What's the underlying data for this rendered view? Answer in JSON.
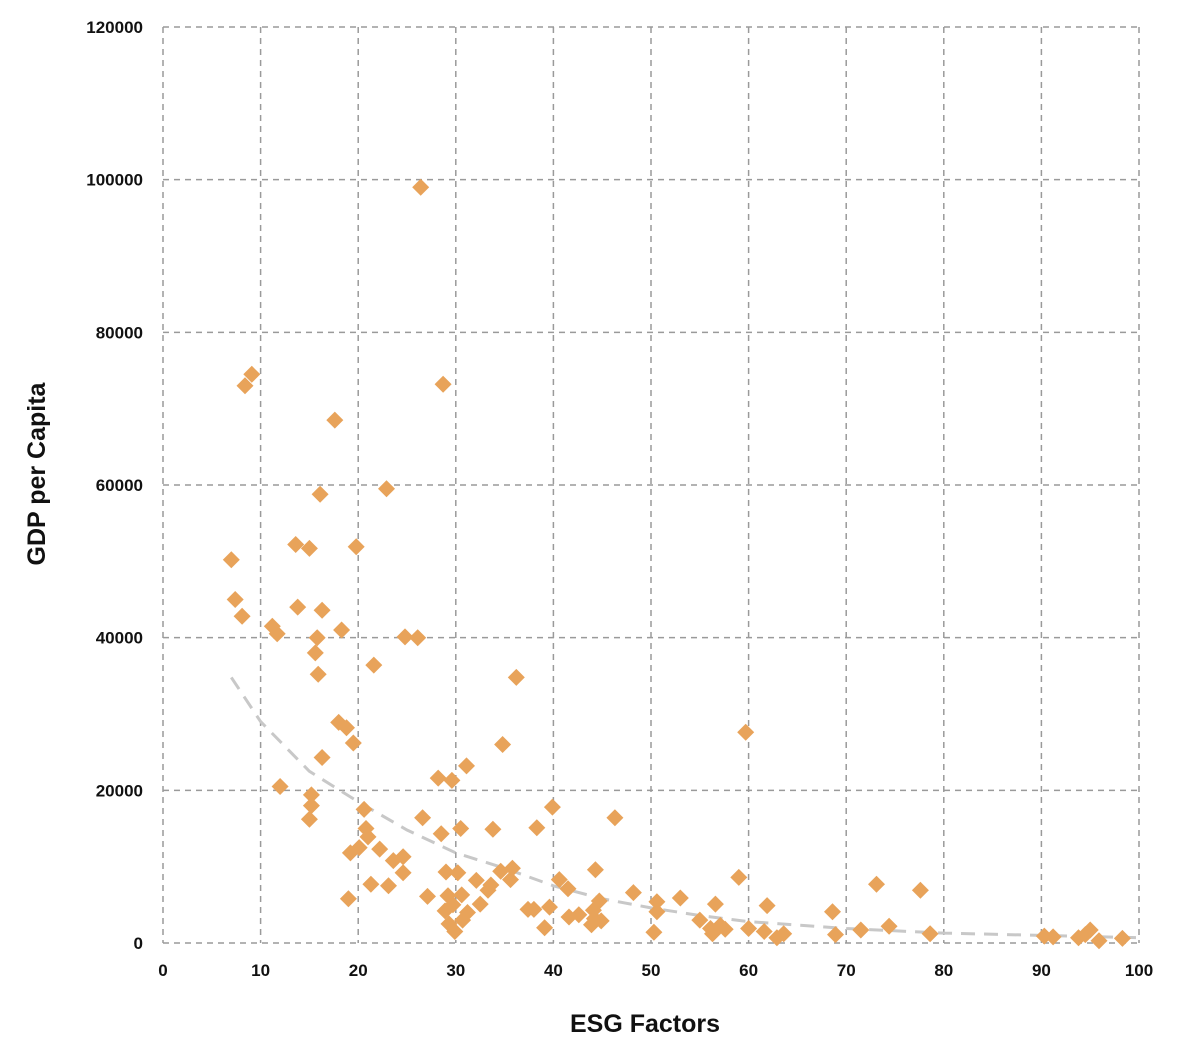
{
  "chart_data": {
    "type": "scatter",
    "xlabel": "ESG Factors",
    "ylabel": "GDP per Capita",
    "xlim": [
      0,
      100
    ],
    "ylim": [
      0,
      120000
    ],
    "xticks": [
      0,
      10,
      20,
      30,
      40,
      50,
      60,
      70,
      80,
      90,
      100
    ],
    "yticks": [
      0,
      20000,
      40000,
      60000,
      80000,
      100000,
      120000
    ],
    "grid": true,
    "marker": "diamond",
    "point_color": "#E8A35A",
    "trend_color": "#C8C8C8",
    "trendline": {
      "style": "dashed",
      "x": [
        7,
        10,
        15,
        20,
        25,
        30,
        35,
        40,
        45,
        50,
        55,
        60,
        70,
        80,
        90,
        100
      ],
      "y": [
        34800,
        29000,
        22500,
        18500,
        14800,
        11800,
        9800,
        7500,
        5800,
        4600,
        3600,
        2800,
        1900,
        1300,
        1000,
        700
      ]
    },
    "points": [
      {
        "x": 7,
        "y": 50200
      },
      {
        "x": 7.4,
        "y": 45000
      },
      {
        "x": 8.1,
        "y": 42800
      },
      {
        "x": 8.4,
        "y": 73000
      },
      {
        "x": 9.1,
        "y": 74500
      },
      {
        "x": 11.2,
        "y": 41500
      },
      {
        "x": 11.7,
        "y": 40500
      },
      {
        "x": 12,
        "y": 20500
      },
      {
        "x": 13.6,
        "y": 52200
      },
      {
        "x": 13.8,
        "y": 44000
      },
      {
        "x": 15,
        "y": 51700
      },
      {
        "x": 15,
        "y": 16200
      },
      {
        "x": 15.2,
        "y": 19400
      },
      {
        "x": 15.2,
        "y": 18000
      },
      {
        "x": 15.6,
        "y": 38000
      },
      {
        "x": 15.8,
        "y": 40000
      },
      {
        "x": 15.9,
        "y": 35200
      },
      {
        "x": 16.1,
        "y": 58800
      },
      {
        "x": 16.3,
        "y": 43600
      },
      {
        "x": 16.3,
        "y": 24300
      },
      {
        "x": 17.6,
        "y": 68500
      },
      {
        "x": 18,
        "y": 28900
      },
      {
        "x": 18.3,
        "y": 41000
      },
      {
        "x": 18.8,
        "y": 28200
      },
      {
        "x": 19,
        "y": 5800
      },
      {
        "x": 19.2,
        "y": 11800
      },
      {
        "x": 19.5,
        "y": 26200
      },
      {
        "x": 19.8,
        "y": 51900
      },
      {
        "x": 20.1,
        "y": 12500
      },
      {
        "x": 20.6,
        "y": 17500
      },
      {
        "x": 20.8,
        "y": 15000
      },
      {
        "x": 21,
        "y": 13900
      },
      {
        "x": 21.3,
        "y": 7700
      },
      {
        "x": 21.6,
        "y": 36400
      },
      {
        "x": 22.2,
        "y": 12300
      },
      {
        "x": 22.9,
        "y": 59500
      },
      {
        "x": 23.1,
        "y": 7500
      },
      {
        "x": 23.6,
        "y": 10800
      },
      {
        "x": 24.6,
        "y": 11300
      },
      {
        "x": 24.6,
        "y": 9200
      },
      {
        "x": 24.8,
        "y": 40100
      },
      {
        "x": 26.1,
        "y": 40000
      },
      {
        "x": 26.4,
        "y": 99000
      },
      {
        "x": 26.6,
        "y": 16400
      },
      {
        "x": 27.1,
        "y": 6100
      },
      {
        "x": 28.2,
        "y": 21600
      },
      {
        "x": 28.5,
        "y": 14300
      },
      {
        "x": 28.7,
        "y": 73200
      },
      {
        "x": 28.9,
        "y": 4200
      },
      {
        "x": 29,
        "y": 9300
      },
      {
        "x": 29.2,
        "y": 6200
      },
      {
        "x": 29.3,
        "y": 2500
      },
      {
        "x": 29.6,
        "y": 21300
      },
      {
        "x": 29.7,
        "y": 5000
      },
      {
        "x": 29.9,
        "y": 1500
      },
      {
        "x": 30.2,
        "y": 9200
      },
      {
        "x": 30.5,
        "y": 15000
      },
      {
        "x": 30.6,
        "y": 6300
      },
      {
        "x": 30.7,
        "y": 3000
      },
      {
        "x": 31.1,
        "y": 23200
      },
      {
        "x": 31.2,
        "y": 4000
      },
      {
        "x": 32.1,
        "y": 8200
      },
      {
        "x": 32.5,
        "y": 5100
      },
      {
        "x": 33.3,
        "y": 6900
      },
      {
        "x": 33.6,
        "y": 7600
      },
      {
        "x": 33.8,
        "y": 14900
      },
      {
        "x": 34.6,
        "y": 9400
      },
      {
        "x": 34.8,
        "y": 26000
      },
      {
        "x": 35.6,
        "y": 8300
      },
      {
        "x": 35.8,
        "y": 9800
      },
      {
        "x": 36.2,
        "y": 34800
      },
      {
        "x": 37.4,
        "y": 4400
      },
      {
        "x": 38,
        "y": 4400
      },
      {
        "x": 38.3,
        "y": 15100
      },
      {
        "x": 39.1,
        "y": 2000
      },
      {
        "x": 39.6,
        "y": 4700
      },
      {
        "x": 39.9,
        "y": 17800
      },
      {
        "x": 40.6,
        "y": 8300
      },
      {
        "x": 41.5,
        "y": 7100
      },
      {
        "x": 41.6,
        "y": 3400
      },
      {
        "x": 42.6,
        "y": 3700
      },
      {
        "x": 43.9,
        "y": 2400
      },
      {
        "x": 44.1,
        "y": 4300
      },
      {
        "x": 44.2,
        "y": 3200
      },
      {
        "x": 44.3,
        "y": 9600
      },
      {
        "x": 44.7,
        "y": 5500
      },
      {
        "x": 44.9,
        "y": 2900
      },
      {
        "x": 46.3,
        "y": 16400
      },
      {
        "x": 48.2,
        "y": 6600
      },
      {
        "x": 50.3,
        "y": 1400
      },
      {
        "x": 50.6,
        "y": 4100
      },
      {
        "x": 50.6,
        "y": 5400
      },
      {
        "x": 53,
        "y": 5900
      },
      {
        "x": 55,
        "y": 3000
      },
      {
        "x": 56.1,
        "y": 1900
      },
      {
        "x": 56.3,
        "y": 1200
      },
      {
        "x": 56.6,
        "y": 5100
      },
      {
        "x": 57.1,
        "y": 2300
      },
      {
        "x": 57.6,
        "y": 1800
      },
      {
        "x": 59,
        "y": 8600
      },
      {
        "x": 59.7,
        "y": 27600
      },
      {
        "x": 60,
        "y": 1900
      },
      {
        "x": 61.6,
        "y": 1500
      },
      {
        "x": 61.9,
        "y": 4900
      },
      {
        "x": 62.9,
        "y": 700
      },
      {
        "x": 63.6,
        "y": 1200
      },
      {
        "x": 68.6,
        "y": 4100
      },
      {
        "x": 68.9,
        "y": 1100
      },
      {
        "x": 71.5,
        "y": 1700
      },
      {
        "x": 73.1,
        "y": 7700
      },
      {
        "x": 74.4,
        "y": 2200
      },
      {
        "x": 77.6,
        "y": 6900
      },
      {
        "x": 78.6,
        "y": 1200
      },
      {
        "x": 90.3,
        "y": 900
      },
      {
        "x": 91.2,
        "y": 800
      },
      {
        "x": 93.8,
        "y": 700
      },
      {
        "x": 94.5,
        "y": 1100
      },
      {
        "x": 95,
        "y": 1700
      },
      {
        "x": 95.9,
        "y": 300
      },
      {
        "x": 98.3,
        "y": 600
      }
    ]
  }
}
